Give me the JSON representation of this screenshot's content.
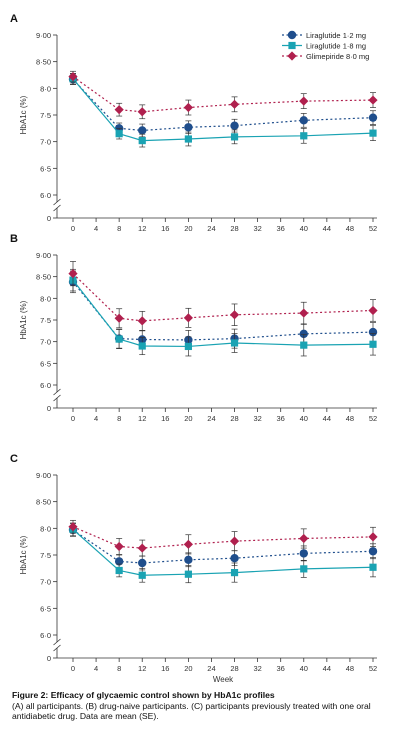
{
  "legend": [
    {
      "name": "Liraglutide 1·2 mg",
      "color": "#1f4e8c",
      "marker": "circle"
    },
    {
      "name": "Liraglutide 1·8 mg",
      "color": "#1aa3b3",
      "marker": "square"
    },
    {
      "name": "Glimepiride 8·0 mg",
      "color": "#b0204e",
      "marker": "diamond"
    }
  ],
  "y_ticks": [
    "9·00",
    "8·50",
    "8·0",
    "7·5",
    "7·0",
    "6·5",
    "6·0",
    "0"
  ],
  "x_ticks": [
    "0",
    "4",
    "8",
    "12",
    "16",
    "20",
    "24",
    "28",
    "32",
    "36",
    "40",
    "44",
    "48",
    "52"
  ],
  "chart_data": [
    {
      "type": "line",
      "panel_label": "A",
      "xlabel": "",
      "ylabel": "HbA1c (%)",
      "x": [
        0,
        8,
        12,
        20,
        28,
        40,
        52
      ],
      "ylim": [
        6,
        9
      ],
      "xlim": [
        0,
        52
      ],
      "series": [
        {
          "name": "Liraglutide 1·2 mg",
          "values": [
            8.17,
            7.25,
            7.21,
            7.27,
            7.3,
            7.4,
            7.45
          ],
          "se": [
            0.1,
            0.1,
            0.12,
            0.12,
            0.12,
            0.13,
            0.13
          ]
        },
        {
          "name": "Liraglutide 1·8 mg",
          "values": [
            8.18,
            7.15,
            7.02,
            7.05,
            7.09,
            7.11,
            7.16
          ],
          "se": [
            0.1,
            0.1,
            0.12,
            0.13,
            0.13,
            0.14,
            0.14
          ]
        },
        {
          "name": "Glimepiride 8·0 mg",
          "values": [
            8.22,
            7.6,
            7.56,
            7.64,
            7.7,
            7.76,
            7.78
          ],
          "se": [
            0.1,
            0.12,
            0.13,
            0.14,
            0.14,
            0.14,
            0.14
          ]
        }
      ]
    },
    {
      "type": "line",
      "panel_label": "B",
      "xlabel": "",
      "ylabel": "HbA1c (%)",
      "x": [
        0,
        8,
        12,
        20,
        28,
        40,
        52
      ],
      "ylim": [
        6,
        9
      ],
      "xlim": [
        0,
        52
      ],
      "series": [
        {
          "name": "Liraglutide 1·2 mg",
          "values": [
            8.38,
            7.07,
            7.05,
            7.04,
            7.07,
            7.18,
            7.22
          ],
          "se": [
            0.25,
            0.22,
            0.2,
            0.22,
            0.22,
            0.22,
            0.22
          ]
        },
        {
          "name": "Liraglutide 1·8 mg",
          "values": [
            8.42,
            7.06,
            6.9,
            6.89,
            6.97,
            6.92,
            6.94
          ],
          "se": [
            0.25,
            0.22,
            0.2,
            0.22,
            0.22,
            0.25,
            0.25
          ]
        },
        {
          "name": "Glimepiride 8·0 mg",
          "values": [
            8.57,
            7.54,
            7.48,
            7.55,
            7.62,
            7.66,
            7.72
          ],
          "se": [
            0.28,
            0.22,
            0.22,
            0.22,
            0.25,
            0.25,
            0.25
          ]
        }
      ]
    },
    {
      "type": "line",
      "panel_label": "C",
      "xlabel": "Week",
      "ylabel": "HbA1c (%)",
      "x": [
        0,
        8,
        12,
        20,
        28,
        40,
        52
      ],
      "ylim": [
        6,
        9
      ],
      "xlim": [
        0,
        52
      ],
      "series": [
        {
          "name": "Liraglutide 1·2 mg",
          "values": [
            7.97,
            7.38,
            7.35,
            7.41,
            7.44,
            7.53,
            7.57
          ],
          "se": [
            0.12,
            0.12,
            0.13,
            0.13,
            0.14,
            0.14,
            0.14
          ]
        },
        {
          "name": "Liraglutide 1·8 mg",
          "values": [
            7.98,
            7.21,
            7.12,
            7.14,
            7.17,
            7.24,
            7.27
          ],
          "se": [
            0.12,
            0.12,
            0.13,
            0.16,
            0.18,
            0.16,
            0.18
          ]
        },
        {
          "name": "Glimepiride 8·0 mg",
          "values": [
            8.03,
            7.66,
            7.63,
            7.7,
            7.76,
            7.81,
            7.84
          ],
          "se": [
            0.12,
            0.15,
            0.15,
            0.18,
            0.18,
            0.18,
            0.18
          ]
        }
      ]
    }
  ],
  "caption": {
    "label": "Figure 2:",
    "title": "Efficacy of glycaemic control shown by HbA1c profiles",
    "text": "(A) all participants. (B) drug-naive participants. (C) participants previously treated with one oral antidiabetic drug. Data are mean (SE)."
  }
}
